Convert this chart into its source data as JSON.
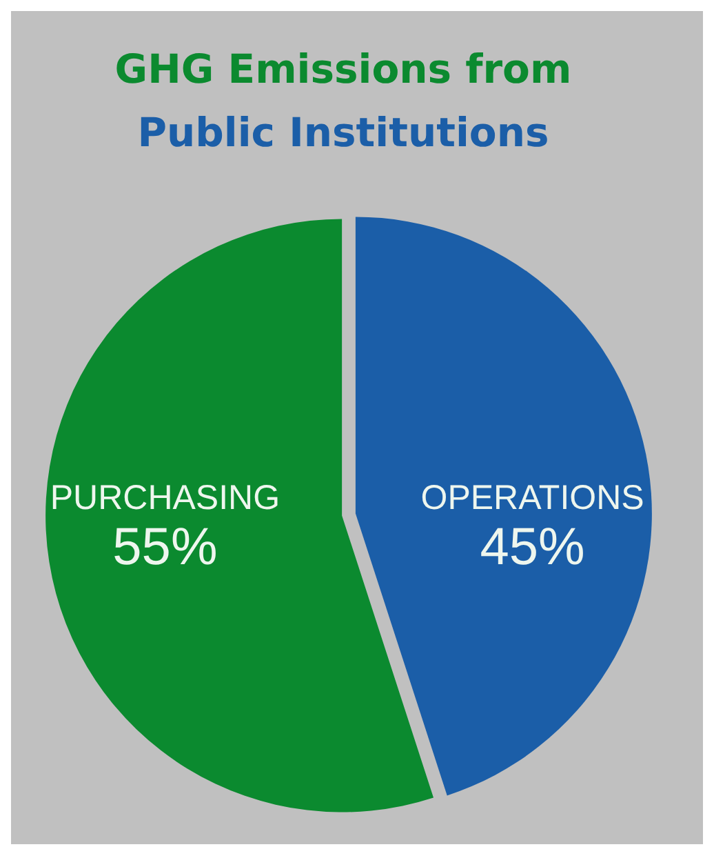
{
  "chart_data": {
    "type": "pie",
    "title": "GHG Emissions from Public Institutions",
    "categories": [
      "PURCHASING",
      "OPERATIONS"
    ],
    "values": [
      55,
      45
    ],
    "colors": [
      "#0b8a2f",
      "#1b5ea8"
    ],
    "value_labels": [
      "55%",
      "45%"
    ]
  }
}
